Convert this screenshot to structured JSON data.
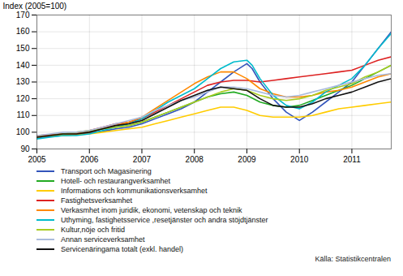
{
  "chart_data": {
    "type": "line",
    "ylabel": "Index (2005=100)",
    "caption": "Källa: Statistikcentralen",
    "xlim": [
      2005.0,
      2011.75
    ],
    "xticks": [
      2005,
      2006,
      2007,
      2008,
      2009,
      2010,
      2011
    ],
    "ylim": [
      90,
      170
    ],
    "yticks": [
      90,
      100,
      110,
      120,
      130,
      140,
      150,
      160,
      170
    ],
    "grid": true,
    "legend": "bottom",
    "series": [
      {
        "name": "Transport och Magasinering",
        "color": "#3355bb",
        "x": [
          2005.0,
          2005.1,
          2005.2,
          2005.3,
          2005.5,
          2005.75,
          2006.0,
          2006.25,
          2006.5,
          2006.75,
          2007.0,
          2007.25,
          2007.5,
          2007.75,
          2008.0,
          2008.25,
          2008.5,
          2008.75,
          2009.0,
          2009.1,
          2009.25,
          2009.5,
          2009.75,
          2010.0,
          2010.25,
          2010.5,
          2010.75,
          2011.0,
          2011.25,
          2011.5,
          2011.75
        ],
        "values": [
          96.5,
          97,
          97.3,
          97.5,
          98,
          98.5,
          99.5,
          100.5,
          102,
          103,
          105,
          108,
          111,
          114,
          118,
          124,
          130,
          136,
          141,
          138,
          130,
          120,
          112,
          107,
          112,
          118,
          124,
          130,
          140,
          150,
          160
        ]
      },
      {
        "name": "Hotell- och restaurangverksamhet",
        "color": "#22aa22",
        "x": [
          2005.0,
          2005.25,
          2005.5,
          2005.75,
          2006.0,
          2006.25,
          2006.5,
          2006.75,
          2007.0,
          2007.25,
          2007.5,
          2007.75,
          2008.0,
          2008.25,
          2008.5,
          2008.75,
          2009.0,
          2009.25,
          2009.5,
          2009.75,
          2010.0,
          2010.25,
          2010.5,
          2010.75,
          2011.0,
          2011.25,
          2011.5,
          2011.75
        ],
        "values": [
          98,
          98.5,
          99,
          99.5,
          100.5,
          102,
          103,
          104,
          106,
          109,
          112,
          115,
          118,
          121,
          123,
          124,
          122,
          118,
          116,
          115,
          116,
          119,
          122,
          125,
          128,
          132,
          136,
          140
        ]
      },
      {
        "name": "Informations och kommunikationsverksamhet",
        "color": "#ffcc00",
        "x": [
          2005.0,
          2005.25,
          2005.5,
          2005.75,
          2006.0,
          2006.25,
          2006.5,
          2006.75,
          2007.0,
          2007.25,
          2007.5,
          2007.75,
          2008.0,
          2008.25,
          2008.5,
          2008.75,
          2009.0,
          2009.25,
          2009.5,
          2009.75,
          2010.0,
          2010.25,
          2010.5,
          2010.75,
          2011.0,
          2011.25,
          2011.5,
          2011.75
        ],
        "values": [
          98,
          98,
          98.2,
          98.5,
          99,
          100,
          101,
          102,
          103,
          105,
          107,
          109,
          111,
          113,
          115,
          115,
          113,
          110,
          109,
          109,
          109,
          110,
          112,
          114,
          115,
          116,
          117,
          118
        ]
      },
      {
        "name": "Fastighetsverksamhet",
        "color": "#dd2222",
        "x": [
          2005.0,
          2005.25,
          2005.5,
          2005.75,
          2006.0,
          2006.25,
          2006.5,
          2006.75,
          2007.0,
          2007.25,
          2007.5,
          2007.75,
          2008.0,
          2008.25,
          2008.5,
          2008.75,
          2009.0,
          2009.25,
          2009.5,
          2009.75,
          2010.0,
          2010.25,
          2010.5,
          2010.75,
          2011.0,
          2011.25,
          2011.5,
          2011.75
        ],
        "values": [
          98,
          98.5,
          99,
          99.5,
          101,
          103,
          105,
          106,
          108,
          112,
          116,
          120,
          124,
          128,
          130,
          131,
          131,
          130,
          131,
          132,
          133,
          134,
          135,
          136,
          137,
          140,
          143,
          145
        ]
      },
      {
        "name": "Verkasmhet inom juridik, ekonomi, vetenskap och teknik",
        "color": "#ff8800",
        "x": [
          2005.0,
          2005.25,
          2005.5,
          2005.75,
          2006.0,
          2006.25,
          2006.5,
          2006.75,
          2007.0,
          2007.25,
          2007.5,
          2007.75,
          2008.0,
          2008.25,
          2008.5,
          2008.75,
          2009.0,
          2009.25,
          2009.5,
          2009.75,
          2010.0,
          2010.25,
          2010.5,
          2010.75,
          2011.0,
          2011.25,
          2011.5,
          2011.75
        ],
        "values": [
          97,
          98,
          99,
          99,
          100,
          102,
          104,
          106,
          109,
          114,
          119,
          124,
          129,
          133,
          136,
          136,
          132,
          126,
          123,
          121,
          121,
          122,
          124,
          125,
          127,
          130,
          133,
          135
        ]
      },
      {
        "name": "Uthyming, fastighetsservice ,resetjänster och andra stöjdtjänster",
        "color": "#00bbcc",
        "x": [
          2005.0,
          2005.25,
          2005.5,
          2005.75,
          2006.0,
          2006.25,
          2006.5,
          2006.75,
          2007.0,
          2007.25,
          2007.5,
          2007.75,
          2008.0,
          2008.25,
          2008.5,
          2008.75,
          2009.0,
          2009.1,
          2009.25,
          2009.5,
          2009.75,
          2010.0,
          2010.25,
          2010.5,
          2010.75,
          2011.0,
          2011.25,
          2011.5,
          2011.75
        ],
        "values": [
          96,
          97,
          98,
          98,
          99,
          101,
          103,
          105,
          108,
          113,
          118,
          122,
          126,
          132,
          138,
          142,
          143,
          140,
          132,
          122,
          116,
          114,
          118,
          124,
          128,
          132,
          140,
          150,
          159
        ]
      },
      {
        "name": "Kultur,nöje och fritid",
        "color": "#aacc22",
        "x": [
          2005.0,
          2005.25,
          2005.5,
          2005.75,
          2006.0,
          2006.25,
          2006.5,
          2006.75,
          2007.0,
          2007.25,
          2007.5,
          2007.75,
          2008.0,
          2008.25,
          2008.5,
          2008.75,
          2009.0,
          2009.25,
          2009.5,
          2009.75,
          2010.0,
          2010.25,
          2010.5,
          2010.75,
          2011.0,
          2011.25,
          2011.5,
          2011.75
        ],
        "values": [
          97,
          98,
          99,
          100,
          101,
          102,
          103,
          104,
          106,
          109,
          112,
          115,
          118,
          121,
          124,
          126,
          125,
          122,
          120,
          119,
          120,
          122,
          125,
          127,
          129,
          133,
          136,
          140
        ]
      },
      {
        "name": "Annan serviceverksamhet",
        "color": "#aabbdd",
        "x": [
          2005.0,
          2005.25,
          2005.5,
          2005.75,
          2006.0,
          2006.25,
          2006.5,
          2006.75,
          2007.0,
          2007.25,
          2007.5,
          2007.75,
          2008.0,
          2008.25,
          2008.5,
          2008.75,
          2009.0,
          2009.25,
          2009.5,
          2009.75,
          2010.0,
          2010.25,
          2010.5,
          2010.75,
          2011.0,
          2011.25,
          2011.5,
          2011.75
        ],
        "values": [
          98,
          99,
          100,
          100,
          101,
          103,
          105,
          107,
          109,
          113,
          116,
          119,
          121,
          124,
          127,
          127,
          126,
          124,
          122,
          121,
          122,
          124,
          126,
          128,
          130,
          132,
          134,
          135
        ]
      },
      {
        "name": "Servicenäringama totalt (exkl. handel)",
        "color": "#111111",
        "x": [
          2005.0,
          2005.25,
          2005.5,
          2005.75,
          2006.0,
          2006.25,
          2006.5,
          2006.75,
          2007.0,
          2007.25,
          2007.5,
          2007.75,
          2008.0,
          2008.25,
          2008.5,
          2008.75,
          2009.0,
          2009.25,
          2009.5,
          2009.75,
          2010.0,
          2010.25,
          2010.5,
          2010.75,
          2011.0,
          2011.25,
          2011.5,
          2011.75
        ],
        "values": [
          97,
          98,
          99,
          99,
          100,
          102,
          104,
          105,
          107,
          111,
          115,
          119,
          122,
          125,
          127,
          126,
          125,
          120,
          116,
          115,
          115,
          117,
          120,
          122,
          124,
          127,
          130,
          132
        ]
      }
    ]
  }
}
